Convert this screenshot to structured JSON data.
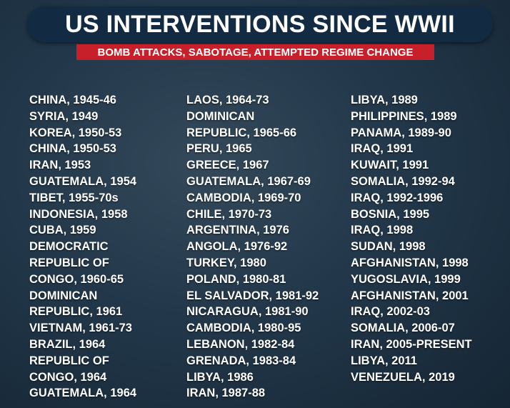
{
  "header": {
    "title": "US INTERVENTIONS SINCE WWII",
    "subtitle": "BOMB ATTACKS, SABOTAGE, ATTEMPTED REGIME CHANGE"
  },
  "columns": [
    [
      "CHINA, 1945-46",
      "SYRIA, 1949",
      "KOREA, 1950-53",
      "CHINA, 1950-53",
      "IRAN, 1953",
      "GUATEMALA, 1954",
      "TIBET, 1955-70s",
      "INDONESIA, 1958",
      "CUBA, 1959",
      "DEMOCRATIC",
      "REPUBLIC OF",
      "CONGO, 1960-65",
      "DOMINICAN",
      "REPUBLIC, 1961",
      "VIETNAM, 1961-73",
      "BRAZIL, 1964",
      "REPUBLIC OF",
      "CONGO, 1964",
      "GUATEMALA, 1964"
    ],
    [
      "LAOS, 1964-73",
      "DOMINICAN",
      "REPUBLIC, 1965-66",
      "PERU, 1965",
      "GREECE, 1967",
      "GUATEMALA, 1967-69",
      "CAMBODIA, 1969-70",
      "CHILE, 1970-73",
      "ARGENTINA, 1976",
      "ANGOLA, 1976-92",
      "TURKEY, 1980",
      "POLAND, 1980-81",
      "EL SALVADOR, 1981-92",
      "NICARAGUA, 1981-90",
      "CAMBODIA, 1980-95",
      "LEBANON, 1982-84",
      "GRENADA, 1983-84",
      "LIBYA, 1986",
      "IRAN, 1987-88"
    ],
    [
      "LIBYA, 1989",
      "PHILIPPINES, 1989",
      "PANAMA, 1989-90",
      "IRAQ, 1991",
      "KUWAIT, 1991",
      "SOMALIA, 1992-94",
      "IRAQ, 1992-1996",
      "BOSNIA, 1995",
      "IRAQ, 1998",
      "SUDAN, 1998",
      "AFGHANISTAN, 1998",
      "YUGOSLAVIA, 1999",
      "AFGHANISTAN, 2001",
      "IRAQ, 2002-03",
      "SOMALIA, 2006-07",
      "IRAN, 2005-PRESENT",
      "LIBYA, 2011",
      "VENEZUELA, 2019"
    ]
  ]
}
